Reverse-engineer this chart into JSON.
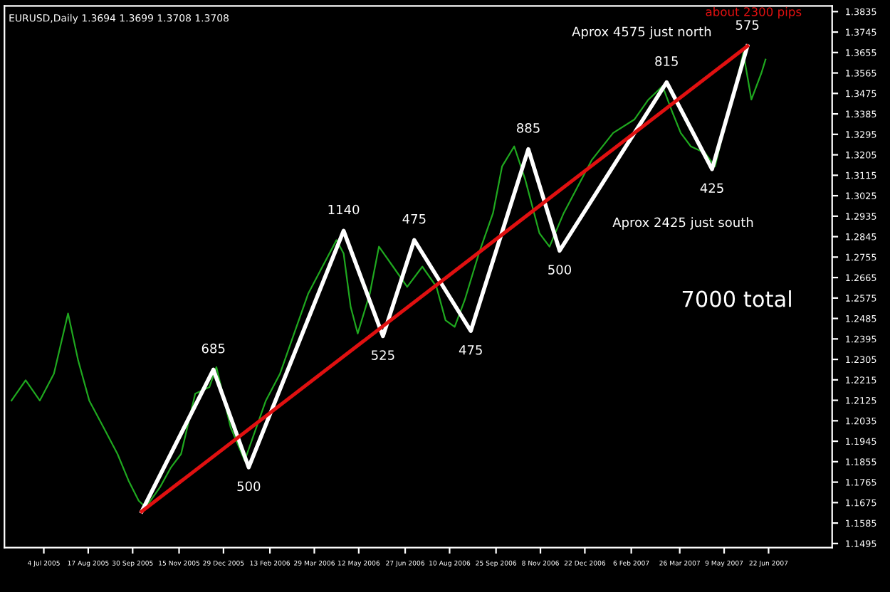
{
  "chart_data": {
    "type": "line",
    "annotations": [
      "EURUSD,Daily 1.3694 1.3699 1.3708 1.3708",
      "about 2300 pips",
      "Aprox 4575 just north",
      "Aprox 2425 just south",
      "7000 total",
      {
        "text": "685",
        "x": "2005-12-19",
        "y": 1.226
      },
      {
        "text": "500",
        "x": "2006-01-23",
        "y": 1.183
      },
      {
        "text": "1140",
        "x": "2006-04-27",
        "y": 1.2871
      },
      {
        "text": "525",
        "x": "2006-06-05",
        "y": 1.2407
      },
      {
        "text": "475",
        "x": "2006-07-06",
        "y": 1.283
      },
      {
        "text": "475",
        "x": "2006-08-31",
        "y": 1.243
      },
      {
        "text": "885",
        "x": "2006-10-27",
        "y": 1.323
      },
      {
        "text": "500",
        "x": "2006-11-27",
        "y": 1.2783
      },
      {
        "text": "815",
        "x": "2007-03-13",
        "y": 1.3524
      },
      {
        "text": "425",
        "x": "2007-04-27",
        "y": 1.3142
      },
      {
        "text": "575",
        "x": "2007-06-01",
        "y": 1.3683
      }
    ],
    "series": [
      {
        "color": "#1fa81f",
        "x": [
          "2005-06-02",
          "2005-06-16",
          "2005-06-30",
          "2005-07-14",
          "2005-07-28",
          "2005-08-07",
          "2005-08-18",
          "2005-09-01",
          "2005-09-15",
          "2005-09-26",
          "2005-10-06",
          "2005-10-13",
          "2005-10-27",
          "2005-11-07",
          "2005-11-17",
          "2005-12-01",
          "2005-12-15",
          "2005-12-22",
          "2006-01-05",
          "2006-01-19",
          "2006-01-26",
          "2006-02-09",
          "2006-02-23",
          "2006-03-09",
          "2006-03-23",
          "2006-04-06",
          "2006-04-20",
          "2006-04-27",
          "2006-05-04",
          "2006-05-11",
          "2006-05-23",
          "2006-06-01",
          "2006-06-15",
          "2006-06-29",
          "2006-07-14",
          "2006-07-28",
          "2006-08-06",
          "2006-08-15",
          "2006-08-25",
          "2006-09-08",
          "2006-09-22",
          "2006-10-01",
          "2006-10-13",
          "2006-10-24",
          "2006-11-07",
          "2006-11-17",
          "2006-12-01",
          "2006-12-15",
          "2006-12-29",
          "2007-01-19",
          "2007-02-09",
          "2007-02-23",
          "2007-03-09",
          "2007-03-19",
          "2007-03-27",
          "2007-04-06",
          "2007-04-20",
          "2007-04-30",
          "2007-05-11",
          "2007-05-22",
          "2007-05-28",
          "2007-06-05",
          "2007-06-15",
          "2007-06-19"
        ],
        "values": [
          1.2124,
          1.2213,
          1.2124,
          1.2242,
          1.2507,
          1.2301,
          1.2124,
          1.2007,
          1.1889,
          1.1771,
          1.1683,
          1.1654,
          1.1742,
          1.183,
          1.1889,
          1.2154,
          1.2183,
          1.2271,
          1.2007,
          1.186,
          1.1948,
          1.2124,
          1.2242,
          1.2419,
          1.2595,
          1.2713,
          1.283,
          1.2771,
          1.2536,
          1.2419,
          1.2595,
          1.2801,
          1.2713,
          1.2624,
          1.2713,
          1.2624,
          1.2477,
          1.2448,
          1.2566,
          1.2771,
          1.2948,
          1.3154,
          1.3242,
          1.3095,
          1.286,
          1.2801,
          1.2948,
          1.3066,
          1.3183,
          1.3301,
          1.336,
          1.3448,
          1.3507,
          1.3389,
          1.3301,
          1.3242,
          1.3213,
          1.3154,
          1.336,
          1.3536,
          1.3654,
          1.3448,
          1.3566,
          1.3624
        ]
      },
      {
        "color": "#ffffff",
        "x": [
          "2005-10-09",
          "2005-12-19",
          "2006-01-23",
          "2006-04-27",
          "2006-06-05",
          "2006-07-06",
          "2006-08-31",
          "2006-10-27",
          "2006-11-27",
          "2007-03-13",
          "2007-04-27",
          "2007-06-01"
        ],
        "values": [
          1.1636,
          1.226,
          1.183,
          1.2871,
          1.2407,
          1.283,
          1.243,
          1.323,
          1.2783,
          1.3524,
          1.3142,
          1.3683
        ]
      },
      {
        "color": "#e01010",
        "x": [
          "2005-10-09",
          "2007-06-01"
        ],
        "values": [
          1.1636,
          1.3683
        ]
      }
    ],
    "xlim": [
      "2005-05-26",
      "2007-08-24"
    ],
    "xticks": [
      {
        "value": "2005-07-04",
        "label": "4 Jul 2005"
      },
      {
        "value": "2005-08-17",
        "label": "17 Aug 2005"
      },
      {
        "value": "2005-09-30",
        "label": "30 Sep 2005"
      },
      {
        "value": "2005-11-15",
        "label": "15 Nov 2005"
      },
      {
        "value": "2005-12-29",
        "label": "29 Dec 2005"
      },
      {
        "value": "2006-02-13",
        "label": "13 Feb 2006"
      },
      {
        "value": "2006-03-29",
        "label": "29 Mar 2006"
      },
      {
        "value": "2006-05-12",
        "label": "12 May 2006"
      },
      {
        "value": "2006-06-27",
        "label": "27 Jun 2006"
      },
      {
        "value": "2006-08-10",
        "label": "10 Aug 2006"
      },
      {
        "value": "2006-09-25",
        "label": "25 Sep 2006"
      },
      {
        "value": "2006-11-08",
        "label": "8 Nov 2006"
      },
      {
        "value": "2006-12-22",
        "label": "22 Dec 2006"
      },
      {
        "value": "2007-02-06",
        "label": "6 Feb 2007"
      },
      {
        "value": "2007-03-26",
        "label": "26 Mar 2007"
      },
      {
        "value": "2007-05-09",
        "label": "9 May 2007"
      },
      {
        "value": "2007-06-22",
        "label": "22 Jun 2007"
      }
    ],
    "ylim": [
      1.1477,
      1.386
    ],
    "yticks": [
      1.1495,
      1.1585,
      1.1675,
      1.1765,
      1.1855,
      1.1945,
      1.2035,
      1.2125,
      1.2215,
      1.2305,
      1.2395,
      1.2485,
      1.2575,
      1.2665,
      1.2755,
      1.2845,
      1.2935,
      1.3025,
      1.3115,
      1.3205,
      1.3295,
      1.3385,
      1.3475,
      1.3565,
      1.3655,
      1.3745,
      1.3835
    ],
    "grid": false,
    "legend": false,
    "marker": "none",
    "line_style": "solid"
  }
}
